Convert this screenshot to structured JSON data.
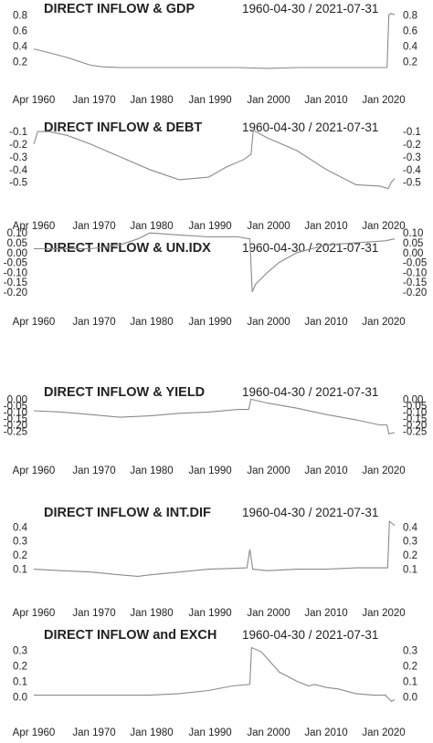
{
  "chart_data": [
    {
      "type": "line",
      "title": "DIRECT INFLOW & GDP",
      "date_range": "1960-04-30 / 2021-07-31",
      "x_ticks": [
        "Apr 1960",
        "Jan 1970",
        "Jan 1980",
        "Jan 1990",
        "Jan 2000",
        "Jan 2010",
        "Jan 2020"
      ],
      "x_tick_dates": [
        1960.33,
        1970.0,
        1980.0,
        1990.0,
        2000.0,
        2010.0,
        2020.0
      ],
      "x_range": [
        1960.33,
        2021.58
      ],
      "y_ticks": [
        "0.8",
        "0.6",
        "0.4",
        "0.2"
      ],
      "y_tick_values": [
        0.8,
        0.6,
        0.4,
        0.2
      ],
      "ylim": [
        0.05,
        0.85
      ],
      "x": [
        1960.33,
        1963,
        1966,
        1968,
        1970,
        1972,
        1975,
        1980,
        1985,
        1990,
        1995,
        2000,
        2005,
        2010,
        2015,
        2019,
        2020.3,
        2020.6,
        2021.0,
        2021.58
      ],
      "y": [
        0.36,
        0.31,
        0.25,
        0.2,
        0.15,
        0.13,
        0.12,
        0.12,
        0.12,
        0.12,
        0.12,
        0.11,
        0.12,
        0.12,
        0.12,
        0.12,
        0.12,
        0.8,
        0.82,
        0.8
      ]
    },
    {
      "type": "line",
      "title": "DIRECT INFLOW & DEBT",
      "date_range": "1960-04-30 / 2021-07-31",
      "x_ticks": [
        "Apr 1960",
        "Jan 1970",
        "Jan 1980",
        "Jan 1990",
        "Jan 2000",
        "Jan 2010",
        "Jan 2020"
      ],
      "x_tick_dates": [
        1960.33,
        1970.0,
        1980.0,
        1990.0,
        2000.0,
        2010.0,
        2020.0
      ],
      "x_range": [
        1960.33,
        2021.58
      ],
      "y_ticks": [
        "-0.1",
        "-0.2",
        "-0.3",
        "-0.4",
        "-0.5"
      ],
      "y_tick_values": [
        -0.1,
        -0.2,
        -0.3,
        -0.4,
        -0.5
      ],
      "ylim": [
        -0.56,
        -0.07
      ],
      "x": [
        1960.33,
        1961,
        1963,
        1966,
        1970,
        1975,
        1980,
        1985,
        1990,
        1993,
        1996,
        1997.2,
        1997.6,
        1998,
        2000,
        2005,
        2010,
        2015,
        2019,
        2020.5,
        2021.0,
        2021.58
      ],
      "y": [
        -0.2,
        -0.1,
        -0.1,
        -0.13,
        -0.2,
        -0.3,
        -0.4,
        -0.48,
        -0.46,
        -0.38,
        -0.32,
        -0.28,
        -0.08,
        -0.1,
        -0.15,
        -0.25,
        -0.4,
        -0.52,
        -0.53,
        -0.55,
        -0.5,
        -0.47
      ]
    },
    {
      "type": "line",
      "title": "DIRECT INFLOW & UN.IDX",
      "date_range": "1960-04-30 / 2021-07-31",
      "x_ticks": [
        "Apr 1960",
        "Jan 1970",
        "Jan 1980",
        "Jan 1990",
        "Jan 2000",
        "Jan 2010",
        "Jan 2020"
      ],
      "x_tick_dates": [
        1960.33,
        1970.0,
        1980.0,
        1990.0,
        2000.0,
        2010.0,
        2020.0
      ],
      "x_range": [
        1960.33,
        2021.58
      ],
      "y_ticks": [
        "0.10",
        "0.05",
        "0.00",
        "-0.05",
        "-0.10",
        "-0.15",
        "-0.20"
      ],
      "y_tick_values": [
        0.1,
        0.05,
        0.0,
        -0.05,
        -0.1,
        -0.15,
        -0.2
      ],
      "ylim": [
        -0.21,
        0.115
      ],
      "x": [
        1960.33,
        1965,
        1970,
        1975,
        1978,
        1980,
        1985,
        1990,
        1995,
        1997,
        1997.4,
        1998,
        2000,
        2002,
        2005,
        2010,
        2015,
        2020,
        2021.58
      ],
      "y": [
        0.02,
        0.02,
        0.02,
        0.04,
        0.07,
        0.1,
        0.09,
        0.08,
        0.08,
        0.07,
        -0.2,
        -0.16,
        -0.1,
        -0.05,
        0.0,
        0.04,
        0.05,
        0.06,
        0.07
      ]
    },
    {
      "type": "line",
      "title": "DIRECT INFLOW & YIELD",
      "date_range": "1960-04-30 / 2021-07-31",
      "x_ticks": [
        "Apr 1960",
        "Jan 1970",
        "Jan 1980",
        "Jan 1990",
        "Jan 2000",
        "Jan 2010",
        "Jan 2020"
      ],
      "x_tick_dates": [
        1960.33,
        1970.0,
        1980.0,
        1990.0,
        2000.0,
        2010.0,
        2020.0
      ],
      "x_range": [
        1960.33,
        2021.58
      ],
      "y_ticks": [
        "0.00",
        "-0.05",
        "-0.10",
        "-0.15",
        "-0.20",
        "-0.25"
      ],
      "y_tick_values": [
        0.0,
        -0.05,
        -0.1,
        -0.15,
        -0.2,
        -0.25
      ],
      "ylim": [
        -0.275,
        0.01
      ],
      "x": [
        1960.33,
        1965,
        1970,
        1975,
        1980,
        1985,
        1990,
        1995,
        1996.8,
        1997.2,
        2000,
        2005,
        2010,
        2015,
        2019,
        2020.3,
        2020.6,
        2021.58
      ],
      "y": [
        -0.09,
        -0.1,
        -0.12,
        -0.14,
        -0.13,
        -0.11,
        -0.1,
        -0.08,
        -0.08,
        0.0,
        -0.03,
        -0.07,
        -0.12,
        -0.16,
        -0.2,
        -0.2,
        -0.27,
        -0.26
      ]
    },
    {
      "type": "line",
      "title": "DIRECT INFLOW & INT.DIF",
      "date_range": "1960-04-30 / 2021-07-31",
      "x_ticks": [
        "Apr 1960",
        "Jan 1970",
        "Jan 1980",
        "Jan 1990",
        "Jan 2000",
        "Jan 2010",
        "Jan 2020"
      ],
      "x_tick_dates": [
        1960.33,
        1970.0,
        1980.0,
        1990.0,
        2000.0,
        2010.0,
        2020.0
      ],
      "x_range": [
        1960.33,
        2021.58
      ],
      "y_ticks": [
        "0.4",
        "0.3",
        "0.2",
        "0.1"
      ],
      "y_tick_values": [
        0.4,
        0.3,
        0.2,
        0.1
      ],
      "ylim": [
        0.02,
        0.46
      ],
      "x": [
        1960.33,
        1965,
        1970,
        1975,
        1978,
        1980,
        1985,
        1990,
        1996.5,
        1997,
        1997.5,
        2000,
        2005,
        2010,
        2015,
        2020,
        2020.4,
        2020.7,
        2021.58
      ],
      "y": [
        0.1,
        0.09,
        0.08,
        0.06,
        0.05,
        0.06,
        0.08,
        0.1,
        0.11,
        0.24,
        0.1,
        0.09,
        0.1,
        0.1,
        0.11,
        0.11,
        0.11,
        0.44,
        0.41
      ]
    },
    {
      "type": "line",
      "title": "DIRECT INFLOW and EXCH",
      "date_range": "1960-04-30 / 2021-07-31",
      "x_ticks": [
        "Apr 1960",
        "Jan 1970",
        "Jan 1980",
        "Jan 1990",
        "Jan 2000",
        "Jan 2010",
        "Jan 2020"
      ],
      "x_tick_dates": [
        1960.33,
        1970.0,
        1980.0,
        1990.0,
        2000.0,
        2010.0,
        2020.0
      ],
      "x_range": [
        1960.33,
        2021.58
      ],
      "y_ticks": [
        "0.3",
        "0.2",
        "0.1",
        "0.0"
      ],
      "y_tick_values": [
        0.3,
        0.2,
        0.1,
        0.0
      ],
      "ylim": [
        -0.04,
        0.34
      ],
      "x": [
        1960.33,
        1970,
        1980,
        1985,
        1990,
        1994,
        1997,
        1997.3,
        1999,
        2002,
        2005,
        2007,
        2008,
        2010,
        2012,
        2015,
        2018,
        2020,
        2021,
        2021.58
      ],
      "y": [
        0.01,
        0.01,
        0.01,
        0.02,
        0.04,
        0.07,
        0.08,
        0.32,
        0.29,
        0.16,
        0.1,
        0.07,
        0.08,
        0.06,
        0.05,
        0.02,
        0.01,
        0.01,
        -0.03,
        -0.02
      ]
    }
  ]
}
